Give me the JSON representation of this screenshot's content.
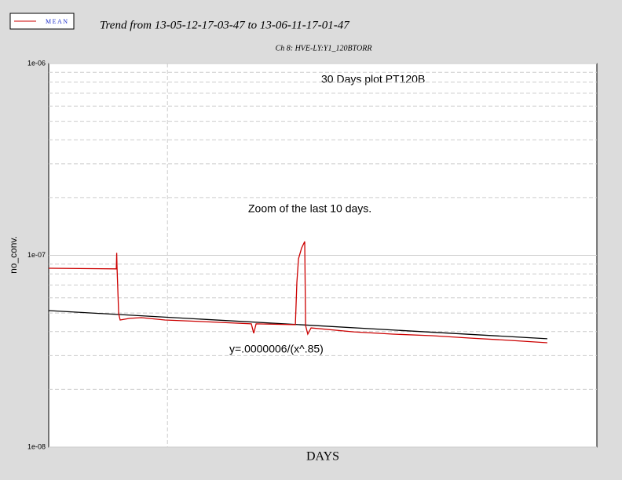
{
  "chart_data": {
    "type": "line",
    "title": "Trend from 13-05-12-17-03-47 to 13-06-11-17-01-47",
    "subtitle": "Ch 8: HVE-LY:Y1_120BTORR",
    "x_label": "DAYS",
    "y_label": "no_conv.",
    "annotations": [
      "30 Days plot PT120B",
      "Zoom of the last 10 days.",
      "y=.0000006/(x^.85)"
    ],
    "log_scale_y": true,
    "legend": "top-left",
    "grid": true,
    "xlim": [
      0,
      30
    ],
    "xgrid": [
      6.5
    ],
    "ylim": [
      1e-08,
      1e-06
    ],
    "yticks": [
      {
        "value": 1e-08,
        "label": "1e-08"
      },
      {
        "value": 1e-07,
        "label": "1e-07"
      },
      {
        "value": 1e-06,
        "label": "1e-06"
      }
    ],
    "yticks_minor": [
      2e-08,
      3e-08,
      4e-08,
      5e-08,
      6e-08,
      7e-08,
      8e-08,
      9e-08,
      2e-07,
      3e-07,
      4e-07,
      5e-07,
      6e-07,
      7e-07,
      8e-07,
      9e-07
    ],
    "series": [
      {
        "name": "MEAN",
        "color": "#cc0000",
        "x": [
          0,
          3.7,
          3.72,
          3.74,
          3.83,
          3.91,
          4.43,
          5.07,
          6.36,
          8.51,
          11.09,
          11.22,
          11.35,
          13.5,
          13.58,
          13.67,
          13.84,
          14.01,
          14.06,
          14.18,
          14.36,
          16.68,
          18.83,
          20.97,
          23.12,
          25.27,
          27.29
        ],
        "values": [
          8.56e-08,
          8.5e-08,
          1.03e-07,
          8.7e-08,
          4.96e-08,
          4.6e-08,
          4.69e-08,
          4.73e-08,
          4.6e-08,
          4.51e-08,
          4.39e-08,
          3.92e-08,
          4.39e-08,
          4.35e-08,
          7.22e-08,
          9.59e-08,
          1.09e-07,
          1.18e-07,
          4.31e-08,
          3.88e-08,
          4.18e-08,
          3.99e-08,
          3.88e-08,
          3.81e-08,
          3.7e-08,
          3.6e-08,
          3.5e-08
        ]
      },
      {
        "color": "#000000",
        "x": [
          0,
          13.67,
          27.29
        ],
        "values": [
          5.15e-08,
          4.35e-08,
          3.67e-08
        ]
      }
    ]
  }
}
